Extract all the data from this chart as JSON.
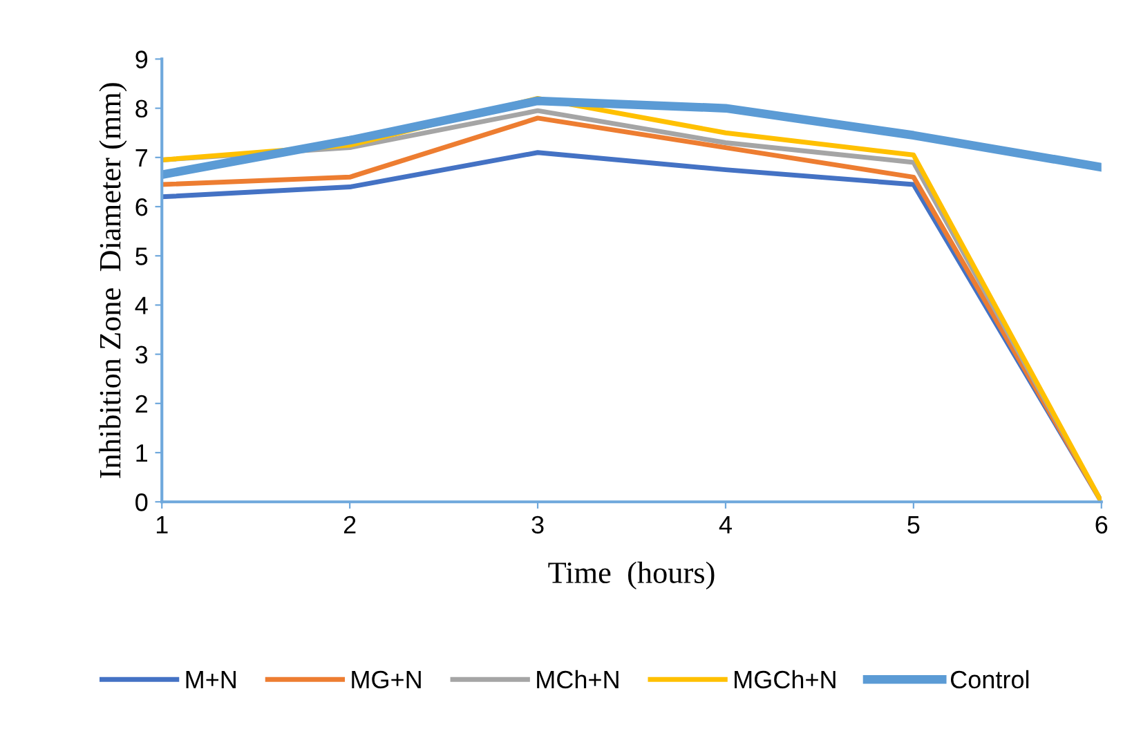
{
  "chart_data": {
    "type": "line",
    "xlabel": "Time  (hours)",
    "ylabel": "Inhibition Zone  Diameter (mm)",
    "x": [
      1,
      2,
      3,
      4,
      5,
      6
    ],
    "series": [
      {
        "name": "M+N",
        "color": "#4472c4",
        "values": [
          6.2,
          6.4,
          7.1,
          6.75,
          6.45,
          0
        ]
      },
      {
        "name": "MG+N",
        "color": "#ed7d31",
        "values": [
          6.45,
          6.6,
          7.8,
          7.2,
          6.6,
          0
        ]
      },
      {
        "name": "MCh+N",
        "color": "#a5a5a5",
        "values": [
          6.95,
          7.2,
          7.95,
          7.3,
          6.9,
          0
        ]
      },
      {
        "name": "MGCh+N",
        "color": "#ffc000",
        "values": [
          6.95,
          7.25,
          8.2,
          7.5,
          7.05,
          0
        ]
      },
      {
        "name": "Control",
        "color": "#5b9bd5",
        "values": [
          6.65,
          7.35,
          8.15,
          8.0,
          7.45,
          6.8
        ]
      }
    ],
    "xlim": [
      1,
      6
    ],
    "xticks": [
      1,
      2,
      3,
      4,
      5,
      6
    ],
    "ylim": [
      0,
      9
    ],
    "yticks": [
      0,
      1,
      2,
      3,
      4,
      5,
      6,
      7,
      8,
      9
    ],
    "grid": false,
    "legend": "bottom",
    "marker": "none",
    "line_style": "solid"
  }
}
